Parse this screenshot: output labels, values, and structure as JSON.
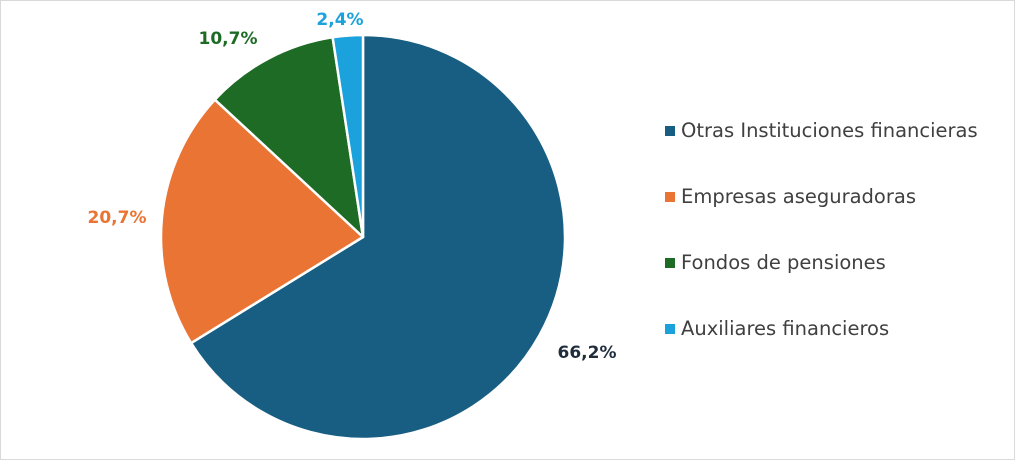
{
  "chart_data": {
    "type": "pie",
    "title": "",
    "legend_position": "right",
    "slices": [
      {
        "label": "Otras Instituciones financieras",
        "value": 66.2,
        "display": "66,2%",
        "color": "#175e82",
        "label_color": "#1f2d3d"
      },
      {
        "label": "Empresas aseguradoras",
        "value": 20.7,
        "display": "20,7%",
        "color": "#ea7433",
        "label_color": "#ea7433"
      },
      {
        "label": "Fondos de pensiones",
        "value": 10.7,
        "display": "10,7%",
        "color": "#1e6b26",
        "label_color": "#1e6b26"
      },
      {
        "label": "Auxiliares financieros",
        "value": 2.4,
        "display": "2,4%",
        "color": "#1ba1dc",
        "label_color": "#1ba1dc"
      }
    ]
  }
}
